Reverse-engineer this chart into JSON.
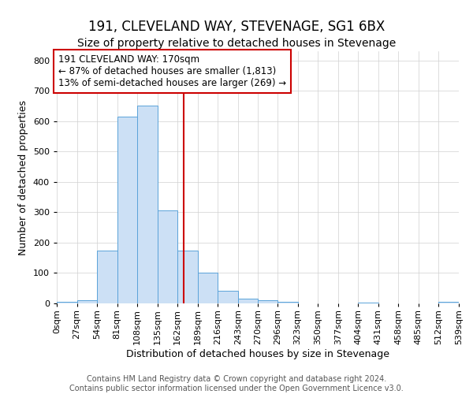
{
  "title": "191, CLEVELAND WAY, STEVENAGE, SG1 6BX",
  "subtitle": "Size of property relative to detached houses in Stevenage",
  "xlabel": "Distribution of detached houses by size in Stevenage",
  "ylabel": "Number of detached properties",
  "footer_lines": [
    "Contains HM Land Registry data © Crown copyright and database right 2024.",
    "Contains public sector information licensed under the Open Government Licence v3.0."
  ],
  "bin_edges": [
    0,
    27,
    54,
    81,
    108,
    135,
    162,
    189,
    216,
    243,
    270,
    296,
    323,
    350,
    377,
    404,
    431,
    458,
    485,
    512,
    539
  ],
  "bar_heights": [
    5,
    10,
    175,
    615,
    650,
    305,
    175,
    100,
    42,
    15,
    10,
    5,
    0,
    0,
    0,
    3,
    0,
    0,
    0,
    5
  ],
  "bar_facecolor": "#cce0f5",
  "bar_edgecolor": "#5ba3d9",
  "vline_x": 170,
  "vline_color": "#cc0000",
  "annotation_line1": "191 CLEVELAND WAY: 170sqm",
  "annotation_line2": "← 87% of detached houses are smaller (1,813)",
  "annotation_line3": "13% of semi-detached houses are larger (269) →",
  "annotation_box_edgecolor": "#cc0000",
  "annotation_fontsize": 8.5,
  "ylim": [
    0,
    830
  ],
  "yticks": [
    0,
    100,
    200,
    300,
    400,
    500,
    600,
    700,
    800
  ],
  "xtick_labels": [
    "0sqm",
    "27sqm",
    "54sqm",
    "81sqm",
    "108sqm",
    "135sqm",
    "162sqm",
    "189sqm",
    "216sqm",
    "243sqm",
    "270sqm",
    "296sqm",
    "323sqm",
    "350sqm",
    "377sqm",
    "404sqm",
    "431sqm",
    "458sqm",
    "485sqm",
    "512sqm",
    "539sqm"
  ],
  "background_color": "#ffffff",
  "grid_color": "#d0d0d0",
  "title_fontsize": 12,
  "subtitle_fontsize": 10,
  "axis_label_fontsize": 9,
  "tick_fontsize": 8,
  "footer_fontsize": 7
}
